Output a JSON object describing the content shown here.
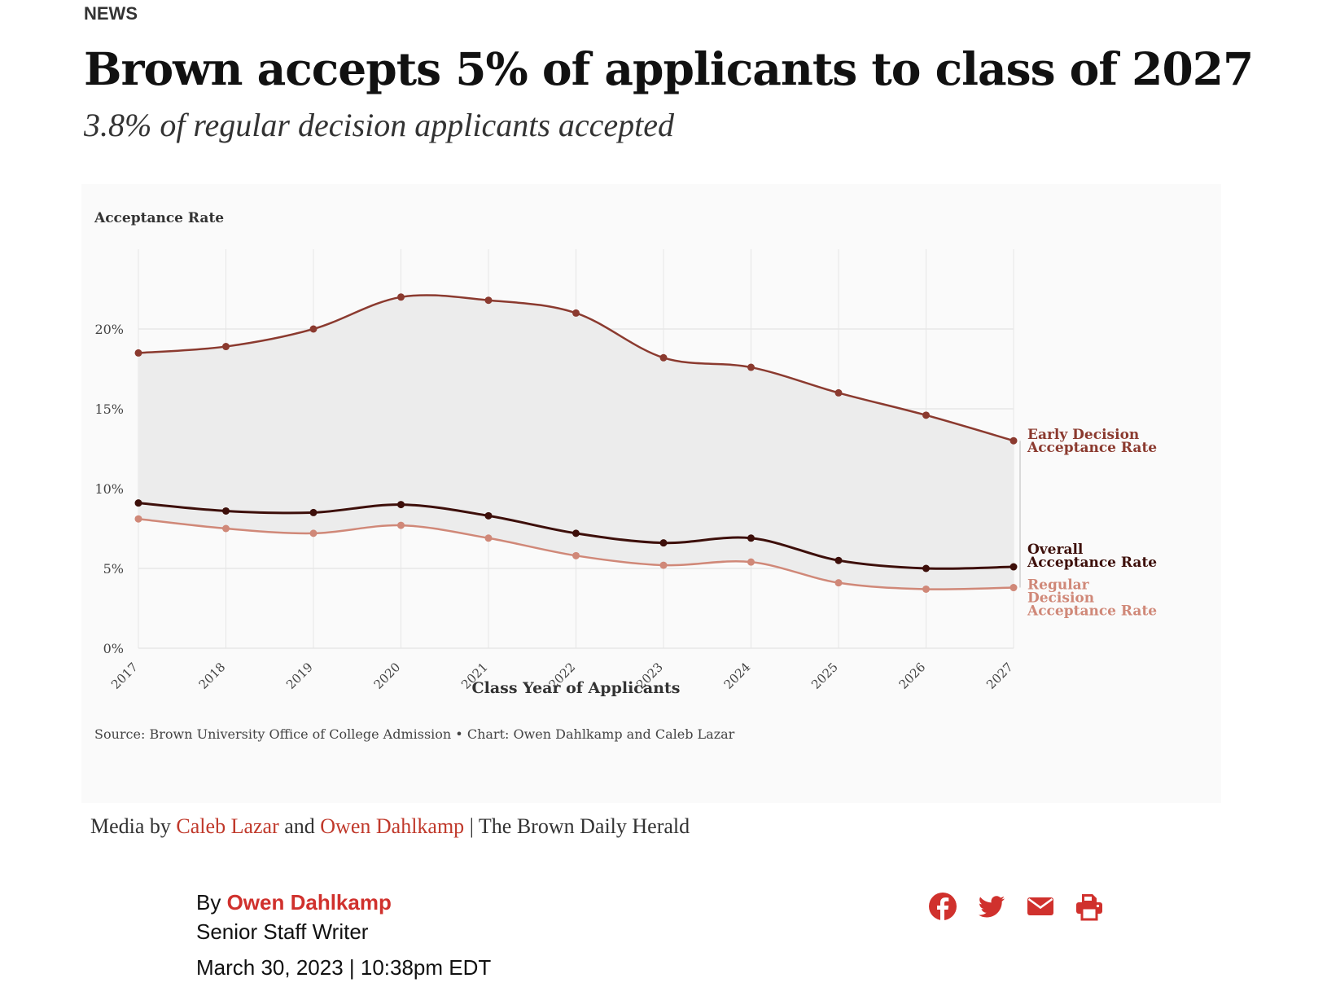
{
  "section": "NEWS",
  "headline": "Brown accepts 5% of applicants to class of 2027",
  "subheadline": "3.8% of regular decision applicants accepted",
  "media_credit": {
    "prefix": "Media by",
    "author1": "Caleb Lazar",
    "conjunction": "and",
    "author2": "Owen Dahlkamp",
    "suffix": "| The Brown Daily Herald"
  },
  "byline": {
    "by": "By",
    "author": "Owen Dahlkamp",
    "role": "Senior Staff Writer",
    "date": "March 30, 2023 | 10:38pm EDT"
  },
  "share_icons": [
    "facebook-icon",
    "twitter-icon",
    "email-icon",
    "print-icon"
  ],
  "colors": {
    "accent": "#d0312d",
    "early": "#8b3a2f",
    "overall": "#3d0f0a",
    "regular": "#d08878",
    "band": "#ececec"
  },
  "chart_data": {
    "type": "line",
    "ylabel": "Acceptance Rate",
    "xlabel": "Class Year of Applicants",
    "source": "Source: Brown University Office of College Admission • Chart: Owen Dahlkamp and Caleb Lazar",
    "ylim": [
      0,
      25
    ],
    "yticks": [
      0,
      5,
      10,
      15,
      20
    ],
    "ytick_labels": [
      "0%",
      "5%",
      "10%",
      "15%",
      "20%"
    ],
    "grid": true,
    "x": [
      "2017",
      "2018",
      "2019",
      "2020",
      "2021",
      "2022",
      "2023",
      "2024",
      "2025",
      "2026",
      "2027"
    ],
    "series": [
      {
        "label_lines": [
          "Early Decision",
          "Acceptance Rate"
        ],
        "values": [
          18.5,
          18.9,
          20.0,
          22.0,
          21.8,
          21.0,
          18.2,
          17.6,
          16.0,
          14.6,
          13.0
        ]
      },
      {
        "label_lines": [
          "Overall",
          "Acceptance Rate"
        ],
        "values": [
          9.1,
          8.6,
          8.5,
          9.0,
          8.3,
          7.2,
          6.6,
          6.9,
          5.5,
          5.0,
          5.1
        ]
      },
      {
        "label_lines": [
          "Regular",
          "Decision",
          "Acceptance Rate"
        ],
        "values": [
          8.1,
          7.5,
          7.2,
          7.7,
          6.9,
          5.8,
          5.2,
          5.4,
          4.1,
          3.7,
          3.8
        ]
      }
    ]
  }
}
